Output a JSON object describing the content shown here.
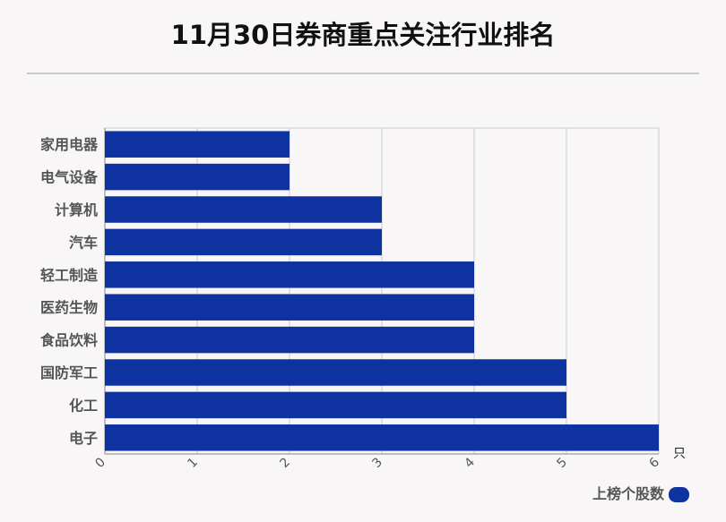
{
  "chart_data": {
    "type": "bar",
    "orientation": "horizontal",
    "title": "11月30日券商重点关注行业排名",
    "categories": [
      "家用电器",
      "电气设备",
      "计算机",
      "汽车",
      "轻工制造",
      "医药生物",
      "食品饮料",
      "国防军工",
      "化工",
      "电子"
    ],
    "series": [
      {
        "name": "上榜个股数",
        "values": [
          2,
          2,
          3,
          3,
          4,
          4,
          4,
          5,
          5,
          6
        ]
      }
    ],
    "x_unit": "只",
    "xlim": [
      0,
      6
    ],
    "x_ticks": [
      "0",
      "1",
      "2",
      "3",
      "4",
      "5",
      "6"
    ],
    "grid": true,
    "legend_position": "bottom-right",
    "colors": {
      "bar": "#0e32a0",
      "grid": "#cccccc",
      "background": "#f9f6f7",
      "divider": "#bbbbbb"
    }
  }
}
